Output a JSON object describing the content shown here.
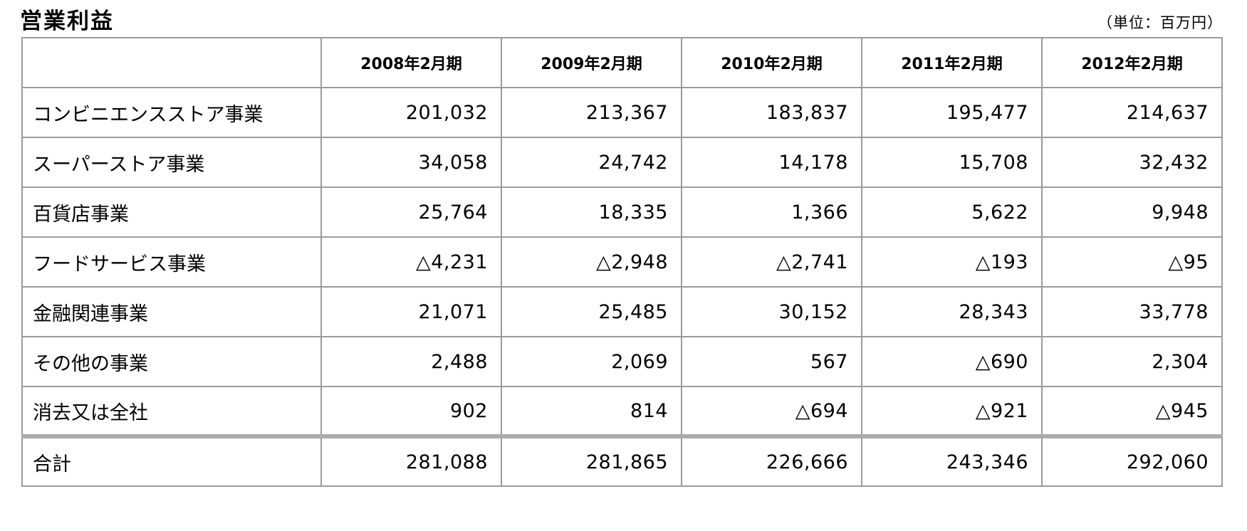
{
  "title": "営業利益",
  "unit_note": "（単位：百万円）",
  "table": {
    "corner_label": "",
    "columns": [
      "2008年2月期",
      "2009年2月期",
      "2010年2月期",
      "2011年2月期",
      "2012年2月期"
    ],
    "rows": [
      {
        "label": "コンビニエンスストア事業",
        "values": [
          "201,032",
          "213,367",
          "183,837",
          "195,477",
          "214,637"
        ]
      },
      {
        "label": "スーパーストア事業",
        "values": [
          "34,058",
          "24,742",
          "14,178",
          "15,708",
          "32,432"
        ]
      },
      {
        "label": "百貨店事業",
        "values": [
          "25,764",
          "18,335",
          "1,366",
          "5,622",
          "9,948"
        ]
      },
      {
        "label": "フードサービス事業",
        "values": [
          "△4,231",
          "△2,948",
          "△2,741",
          "△193",
          "△95"
        ]
      },
      {
        "label": "金融関連事業",
        "values": [
          "21,071",
          "25,485",
          "30,152",
          "28,343",
          "33,778"
        ]
      },
      {
        "label": "その他の事業",
        "values": [
          "2,488",
          "2,069",
          "567",
          "△690",
          "2,304"
        ]
      },
      {
        "label": "消去又は全社",
        "values": [
          "902",
          "814",
          "△694",
          "△921",
          "△945"
        ]
      }
    ],
    "total_row": {
      "label": "合計",
      "values": [
        "281,088",
        "281,865",
        "226,666",
        "243,346",
        "292,060"
      ]
    }
  },
  "colors": {
    "border": "#9b9b9b",
    "thick_separator": "#ababab",
    "text": "#000000",
    "background": "#ffffff"
  }
}
